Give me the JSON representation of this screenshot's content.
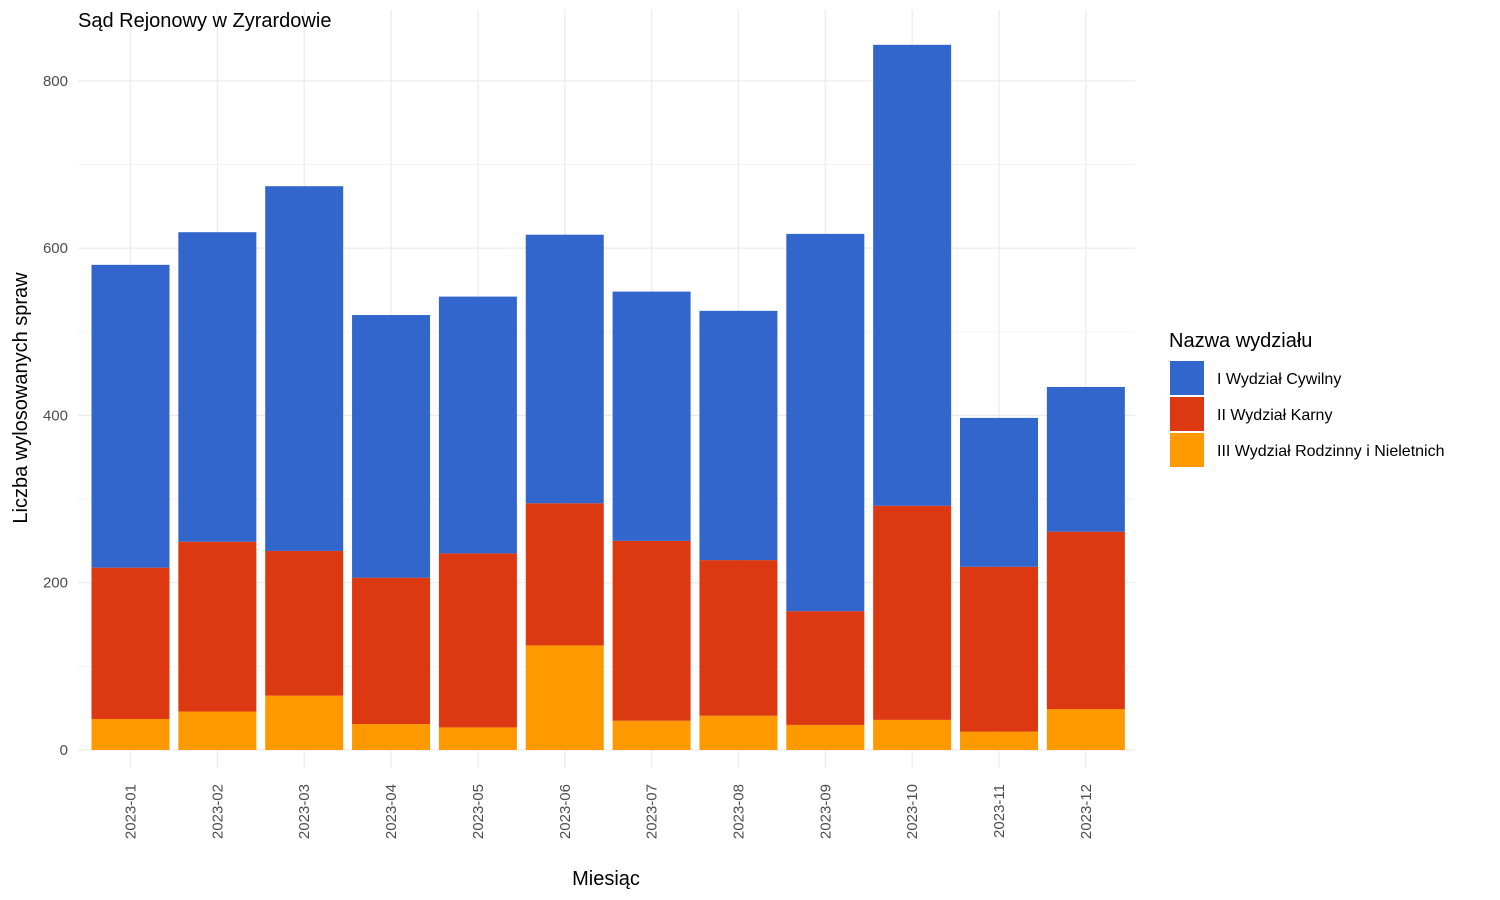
{
  "chart_data": {
    "type": "bar",
    "stacked": true,
    "title": "Sąd Rejonowy w Zyrardowie",
    "xlabel": "Miesiąc",
    "ylabel": "Liczba wylosowanych spraw",
    "ylim": [
      0,
      880
    ],
    "y_ticks": [
      0,
      200,
      400,
      600,
      800
    ],
    "grid": true,
    "legend": {
      "title": "Nazwa wydziału",
      "placement": "right"
    },
    "categories": [
      "2023-01",
      "2023-02",
      "2023-03",
      "2023-04",
      "2023-05",
      "2023-06",
      "2023-07",
      "2023-08",
      "2023-09",
      "2023-10",
      "2023-11",
      "2023-12"
    ],
    "series": [
      {
        "name": "I Wydział Cywilny",
        "color": "#3366cc",
        "values": [
          362,
          370,
          436,
          314,
          307,
          321,
          298,
          298,
          451,
          551,
          178,
          173
        ]
      },
      {
        "name": "II Wydział Karny",
        "color": "#dc3912",
        "values": [
          181,
          203,
          173,
          175,
          208,
          170,
          215,
          186,
          136,
          256,
          197,
          212
        ]
      },
      {
        "name": "III Wydział Rodzinny i Nieletnich",
        "color": "#ff9900",
        "values": [
          37,
          46,
          65,
          31,
          27,
          125,
          35,
          41,
          30,
          36,
          22,
          49
        ]
      }
    ]
  }
}
